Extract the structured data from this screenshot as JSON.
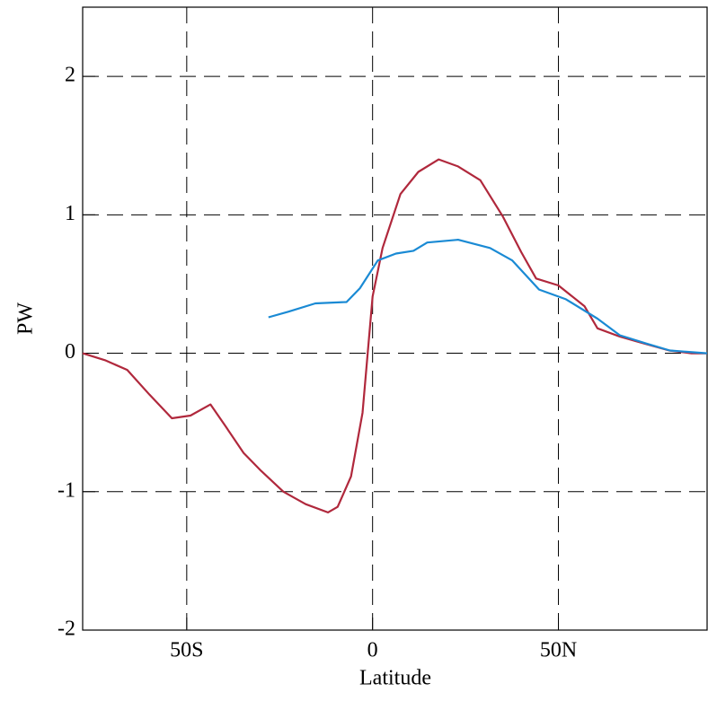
{
  "chart_data": {
    "type": "line",
    "x_label": "Latitude",
    "y_label": "PW",
    "xlim": [
      -78,
      90
    ],
    "ylim": [
      -2,
      2.5
    ],
    "xticks": [
      {
        "value": -50,
        "label": "50S"
      },
      0,
      {
        "value": 50,
        "label": "50N"
      }
    ],
    "yticks": [
      -2,
      -1,
      0,
      1,
      2
    ],
    "grid": true,
    "series": [
      {
        "color": "#b0283c",
        "x": [
          -78,
          -72,
          -66,
          -60,
          -54,
          -49,
          -43.6,
          -39.5,
          -34.7,
          -30,
          -24,
          -18,
          -12,
          -9.4,
          -5.8,
          -2.7,
          0,
          2.7,
          7.5,
          12.3,
          17.8,
          23,
          29,
          35,
          40,
          44,
          50,
          57,
          60.5,
          66.5,
          73.7,
          79.8,
          85.8,
          90
        ],
        "values": [
          0,
          -0.05,
          -0.12,
          -0.3,
          -0.47,
          -0.45,
          -0.37,
          -0.53,
          -0.72,
          -0.85,
          -1.0,
          -1.09,
          -1.15,
          -1.11,
          -0.89,
          -0.43,
          0.41,
          0.76,
          1.15,
          1.31,
          1.4,
          1.35,
          1.25,
          0.99,
          0.73,
          0.54,
          0.49,
          0.34,
          0.18,
          0.12,
          0.065,
          0.02,
          0,
          0
        ]
      },
      {
        "color": "#1a8ad4",
        "x": [
          -28,
          -22.7,
          -15.4,
          -7,
          -3.4,
          1.4,
          6.3,
          11,
          14.7,
          23,
          31.6,
          37.6,
          44.8,
          52,
          60.5,
          66.5,
          73.7,
          80,
          90
        ],
        "values": [
          0.26,
          0.3,
          0.36,
          0.37,
          0.47,
          0.67,
          0.72,
          0.74,
          0.8,
          0.82,
          0.76,
          0.67,
          0.46,
          0.39,
          0.25,
          0.13,
          0.07,
          0.02,
          0
        ]
      }
    ]
  }
}
